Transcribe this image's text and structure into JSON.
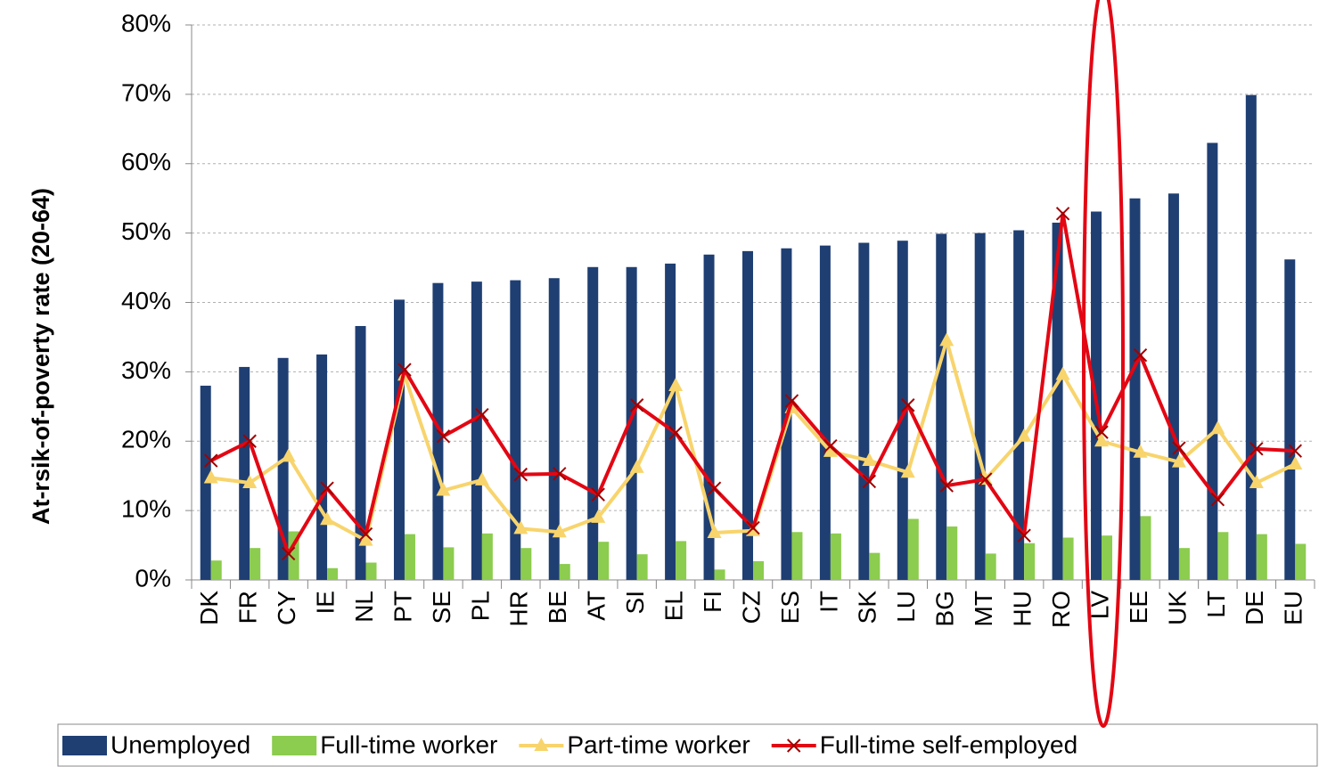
{
  "chart_data": {
    "type": "bar_line",
    "ylabel": "At-rsik-of-poverty rate (20-64)",
    "categories": [
      "DK",
      "FR",
      "CY",
      "IE",
      "NL",
      "PT",
      "SE",
      "PL",
      "HR",
      "BE",
      "AT",
      "SI",
      "EL",
      "FI",
      "CZ",
      "ES",
      "IT",
      "SK",
      "LU",
      "BG",
      "MT",
      "HU",
      "RO",
      "LV",
      "EE",
      "UK",
      "LT",
      "DE",
      "EU"
    ],
    "series": [
      {
        "name": "Unemployed",
        "type": "bar",
        "color": "#1f3f73",
        "values": [
          28,
          30.7,
          32,
          32.5,
          36.6,
          40.4,
          42.8,
          43,
          43.2,
          43.5,
          45.1,
          45.1,
          45.6,
          46.9,
          47.4,
          47.8,
          48.2,
          48.6,
          48.9,
          49.9,
          50,
          50.4,
          51.5,
          53.1,
          55,
          55.7,
          63,
          69.9,
          46.2
        ]
      },
      {
        "name": "Full-time worker",
        "type": "bar",
        "color": "#8ccc4e",
        "values": [
          2.8,
          4.6,
          7,
          1.7,
          2.5,
          6.6,
          4.7,
          6.7,
          4.6,
          2.3,
          5.5,
          3.7,
          5.6,
          1.5,
          2.7,
          6.9,
          6.7,
          3.9,
          8.8,
          7.7,
          3.8,
          5.3,
          6.1,
          6.4,
          9.2,
          4.6,
          6.9,
          6.6,
          5.2
        ]
      },
      {
        "name": "Part-time worker",
        "type": "line",
        "marker": "triangle",
        "color": "#f8d46c",
        "values": [
          14.7,
          14,
          17.8,
          8.7,
          5.7,
          29.5,
          12.9,
          14.4,
          7.4,
          6.9,
          9,
          16.2,
          28,
          6.8,
          7.1,
          24.8,
          18.5,
          17.2,
          15.5,
          34.5,
          14.5,
          20.7,
          29.6,
          20,
          18.4,
          17,
          21.8,
          14,
          16.7
        ]
      },
      {
        "name": "Full-time self-employed",
        "type": "line",
        "marker": "x",
        "color": "#e30613",
        "values": [
          17.2,
          20,
          3.8,
          13.2,
          6.6,
          30.3,
          20.7,
          23.8,
          15.2,
          15.3,
          12.3,
          25.2,
          21.2,
          13.2,
          7.5,
          25.8,
          19.3,
          14.2,
          25.2,
          13.6,
          14.5,
          6.4,
          52.8,
          21.3,
          32.4,
          19,
          11.6,
          18.9,
          18.6
        ]
      }
    ],
    "ylim": [
      0,
      80
    ],
    "yticks": [
      {
        "value": 0,
        "label": "0%"
      },
      {
        "value": 10,
        "label": "10%"
      },
      {
        "value": 20,
        "label": "20%"
      },
      {
        "value": 30,
        "label": "30%"
      },
      {
        "value": 40,
        "label": "40%"
      },
      {
        "value": 50,
        "label": "50%"
      },
      {
        "value": 60,
        "label": "60%"
      },
      {
        "value": 70,
        "label": "70%"
      },
      {
        "value": 80,
        "label": "80%"
      }
    ],
    "grid": true,
    "legend": "bottom"
  }
}
